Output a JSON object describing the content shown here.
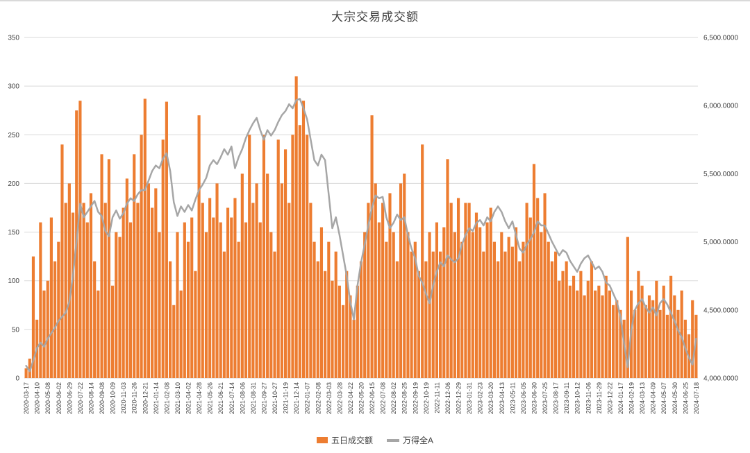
{
  "title": "大宗交易成交额",
  "legend": {
    "bar_label": "五日成交额",
    "line_label": "万得全A"
  },
  "colors": {
    "bar": "#ED7D31",
    "line": "#A6A6A6",
    "grid": "#D9D9D9",
    "text": "#404040"
  },
  "chart_data": {
    "type": "bar",
    "subtype": "combo-bar-line-dual-axis",
    "title": "大宗交易成交额",
    "grid": true,
    "legend_position": "bottom",
    "samples_per_tick_interval": 3,
    "x_tick_labels": [
      "2020-03-17",
      "2020-04-10",
      "2020-05-08",
      "2020-06-02",
      "2020-06-29",
      "2020-07-22",
      "2020-08-14",
      "2020-09-08",
      "2020-10-09",
      "2020-11-03",
      "2020-11-26",
      "2020-12-21",
      "2021-01-14",
      "2021-02-08",
      "2021-03-10",
      "2021-04-02",
      "2021-04-28",
      "2021-05-26",
      "2021-06-21",
      "2021-07-14",
      "2021-08-06",
      "2021-08-31",
      "2021-09-27",
      "2021-10-27",
      "2021-11-19",
      "2021-12-14",
      "2022-01-07",
      "2022-02-08",
      "2022-03-03",
      "2022-03-28",
      "2022-04-22",
      "2022-05-20",
      "2022-06-15",
      "2022-07-08",
      "2022-08-02",
      "2022-08-25",
      "2022-09-19",
      "2022-10-19",
      "2022-11-11",
      "2022-12-06",
      "2022-12-29",
      "2023-01-31",
      "2023-02-23",
      "2023-03-20",
      "2023-04-13",
      "2023-05-11",
      "2023-06-05",
      "2023-06-30",
      "2023-07-25",
      "2023-08-17",
      "2023-09-11",
      "2023-10-12",
      "2023-11-06",
      "2023-11-29",
      "2023-12-22",
      "2024-01-17",
      "2024-02-19",
      "2024-03-13",
      "2024-04-09",
      "2024-05-07",
      "2024-05-30",
      "2024-06-25",
      "2024-07-18"
    ],
    "left_axis": {
      "min": 0,
      "max": 350,
      "step": 50,
      "tick_labels": [
        "0",
        "50",
        "100",
        "150",
        "200",
        "250",
        "300",
        "350"
      ]
    },
    "right_axis": {
      "min": 4000,
      "max": 6500,
      "step": 500,
      "tick_labels": [
        "4,000.0000",
        "4,500.0000",
        "5,000.0000",
        "5,500.0000",
        "6,000.0000",
        "6,500.0000"
      ]
    },
    "series": [
      {
        "name": "五日成交额",
        "type": "bar",
        "axis": "left",
        "color": "#ED7D31",
        "values": [
          10,
          20,
          125,
          60,
          160,
          90,
          100,
          165,
          120,
          140,
          240,
          180,
          200,
          170,
          275,
          285,
          180,
          160,
          190,
          120,
          90,
          230,
          180,
          225,
          95,
          150,
          145,
          175,
          205,
          160,
          230,
          180,
          250,
          287,
          200,
          175,
          195,
          150,
          245,
          284,
          120,
          75,
          150,
          90,
          160,
          140,
          165,
          110,
          270,
          180,
          150,
          185,
          165,
          200,
          160,
          130,
          175,
          165,
          185,
          140,
          210,
          160,
          250,
          180,
          200,
          160,
          250,
          210,
          150,
          130,
          245,
          200,
          235,
          180,
          250,
          310,
          260,
          285,
          250,
          180,
          140,
          120,
          155,
          110,
          140,
          100,
          130,
          95,
          75,
          110,
          85,
          60,
          95,
          120,
          150,
          180,
          270,
          200,
          160,
          180,
          140,
          190,
          150,
          120,
          200,
          210,
          150,
          130,
          140,
          110,
          240,
          120,
          150,
          130,
          160,
          130,
          155,
          225,
          180,
          150,
          185,
          140,
          180,
          180,
          150,
          170,
          155,
          130,
          160,
          175,
          140,
          120,
          150,
          130,
          145,
          135,
          155,
          120,
          140,
          180,
          165,
          220,
          185,
          150,
          190,
          140,
          120,
          130,
          100,
          110,
          120,
          95,
          105,
          90,
          110,
          85,
          100,
          120,
          90,
          95,
          85,
          105,
          90,
          75,
          80,
          70,
          60,
          145,
          90,
          70,
          110,
          95,
          75,
          85,
          80,
          100,
          70,
          95,
          65,
          105,
          85,
          70,
          90,
          60,
          45,
          80,
          65
        ]
      },
      {
        "name": "万得全A",
        "type": "line",
        "axis": "right",
        "color": "#A6A6A6",
        "values": [
          4090,
          4050,
          4130,
          4220,
          4260,
          4230,
          4290,
          4330,
          4370,
          4420,
          4450,
          4480,
          4560,
          4750,
          5000,
          5280,
          5180,
          5220,
          5260,
          5300,
          5220,
          5190,
          5080,
          5040,
          5180,
          5230,
          5170,
          5210,
          5280,
          5320,
          5300,
          5350,
          5380,
          5380,
          5450,
          5520,
          5560,
          5540,
          5610,
          5650,
          5520,
          5290,
          5190,
          5260,
          5220,
          5270,
          5230,
          5310,
          5380,
          5420,
          5470,
          5560,
          5600,
          5570,
          5620,
          5680,
          5640,
          5700,
          5540,
          5620,
          5680,
          5760,
          5820,
          5870,
          5910,
          5820,
          5750,
          5820,
          5780,
          5820,
          5880,
          5930,
          5960,
          6010,
          5980,
          6040,
          6050,
          5980,
          5900,
          5750,
          5600,
          5560,
          5640,
          5600,
          5350,
          5100,
          5180,
          5050,
          4900,
          4750,
          4560,
          4430,
          4680,
          4850,
          4980,
          5120,
          5250,
          5340,
          5320,
          5330,
          5180,
          5100,
          5140,
          5200,
          5160,
          5180,
          5050,
          4950,
          4880,
          4750,
          4700,
          4620,
          4550,
          4680,
          4780,
          4850,
          4820,
          4900,
          4870,
          4850,
          4880,
          4980,
          5050,
          5100,
          5080,
          5140,
          5160,
          5120,
          5180,
          5150,
          5220,
          5260,
          5220,
          5150,
          5100,
          5150,
          5050,
          4950,
          4920,
          4980,
          5020,
          5070,
          5150,
          5120,
          5120,
          5060,
          5000,
          4950,
          4900,
          4940,
          4920,
          4860,
          4820,
          4780,
          4840,
          4880,
          4900,
          4850,
          4800,
          4820,
          4780,
          4700,
          4680,
          4620,
          4560,
          4450,
          4250,
          4080,
          4350,
          4500,
          4550,
          4580,
          4520,
          4480,
          4520,
          4460,
          4550,
          4580,
          4540,
          4480,
          4420,
          4350,
          4300,
          4220,
          4150,
          4100,
          4290
        ]
      }
    ]
  }
}
